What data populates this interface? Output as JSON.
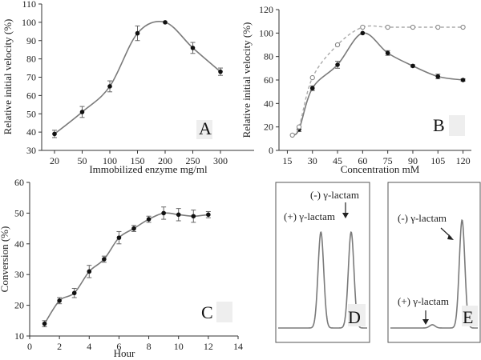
{
  "chart_data": [
    {
      "id": "A",
      "type": "line",
      "panel_label": "A",
      "xlabel": "Immobilized enzyme mg/ml",
      "ylabel": "Relative initial velocity (%)",
      "xticks": [
        "20",
        "50",
        "100",
        "150",
        "200",
        "250",
        "300"
      ],
      "yticks": [
        30,
        40,
        50,
        60,
        70,
        80,
        90,
        100,
        110
      ],
      "ylim": [
        30,
        110
      ],
      "series": [
        {
          "name": "relative velocity",
          "x": [
            "20",
            "50",
            "100",
            "150",
            "200",
            "250",
            "300"
          ],
          "values": [
            39,
            51,
            65,
            94,
            100,
            86,
            73
          ],
          "errors": [
            2,
            3,
            3,
            4,
            0,
            3,
            2
          ]
        }
      ]
    },
    {
      "id": "B",
      "type": "line",
      "panel_label": "B",
      "xlabel": "Concentration  mM",
      "ylabel": "Relative initial velocity (%)",
      "xticks": [
        15,
        30,
        45,
        60,
        75,
        90,
        105,
        120
      ],
      "yticks": [
        0,
        20,
        40,
        60,
        80,
        100,
        120
      ],
      "xlim": [
        10,
        125
      ],
      "ylim": [
        0,
        120
      ],
      "series": [
        {
          "name": "filled",
          "marker": "filled",
          "x": [
            18,
            22,
            30,
            45,
            60,
            75,
            90,
            105,
            120
          ],
          "values": [
            13,
            18,
            53,
            73,
            100,
            83,
            72,
            63,
            60
          ],
          "errors": [
            0,
            2,
            2,
            3,
            0,
            2,
            1,
            2,
            1
          ]
        },
        {
          "name": "open",
          "marker": "open",
          "x": [
            18,
            22,
            30,
            45,
            60,
            75,
            90,
            105,
            120
          ],
          "values": [
            13,
            20,
            62,
            90,
            105,
            105,
            105,
            105,
            105
          ],
          "errors": []
        }
      ]
    },
    {
      "id": "C",
      "type": "line",
      "panel_label": "C",
      "xlabel": "Hour",
      "ylabel": "Conversion (%)",
      "xticks": [
        0,
        2,
        4,
        6,
        8,
        10,
        12,
        14
      ],
      "yticks": [
        10,
        20,
        30,
        40,
        50,
        60
      ],
      "xlim": [
        0,
        14
      ],
      "ylim": [
        10,
        60
      ],
      "series": [
        {
          "name": "conversion",
          "x": [
            1,
            2,
            3,
            4,
            5,
            6,
            7,
            8,
            9,
            10,
            11,
            12
          ],
          "values": [
            14,
            21.5,
            24,
            31,
            35,
            42,
            45,
            48,
            50,
            49.5,
            49,
            49.5
          ],
          "errors": [
            1,
            1,
            1.5,
            2,
            1,
            2,
            1,
            1,
            2,
            2,
            2,
            1
          ]
        }
      ]
    },
    {
      "id": "D",
      "type": "line",
      "panel_label": "D",
      "chart_kind": "chromatogram",
      "peaks": [
        {
          "label": "(+) γ-lactam",
          "position": 0.48,
          "relative_height": 0.93
        },
        {
          "label": "(-) γ-lactam",
          "position": 0.82,
          "relative_height": 0.93
        }
      ]
    },
    {
      "id": "E",
      "type": "line",
      "panel_label": "E",
      "chart_kind": "chromatogram",
      "peaks": [
        {
          "label": "(+) γ-lactam",
          "position": 0.48,
          "relative_height": 0.03
        },
        {
          "label": "(-) γ-lactam",
          "position": 0.82,
          "relative_height": 1.0
        }
      ]
    }
  ]
}
